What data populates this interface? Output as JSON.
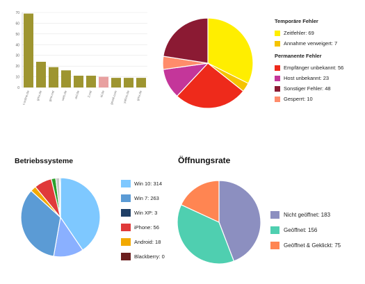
{
  "chart_data": [
    {
      "type": "bar",
      "title": "",
      "categories": [
        "t-online.de",
        "gmx.de",
        "gmx.net",
        "web.de",
        "aol.de",
        "2.net",
        "id.de",
        "gmail.com",
        "yahoo.de",
        "gmx.de"
      ],
      "values": [
        69,
        24,
        19,
        16,
        11,
        11,
        10,
        9,
        9,
        9
      ],
      "highlight_color": "#e8a0a0",
      "highlight_index": 6,
      "bar_color": "#9e9530",
      "ylim": [
        0,
        70
      ],
      "yticks": [
        0,
        10,
        20,
        30,
        40,
        50,
        60,
        70
      ],
      "grid": true
    },
    {
      "type": "pie",
      "title": "",
      "groups": [
        {
          "name": "Temporäre Fehler",
          "items": [
            {
              "label": "Zeitfehler: 69",
              "value": 69,
              "color": "#ffee00"
            },
            {
              "label": "Annahme verweigert: 7",
              "value": 7,
              "color": "#f5c400"
            }
          ]
        },
        {
          "name": "Permanente Fehler",
          "items": [
            {
              "label": "Empfänger unbekannt: 56",
              "value": 56,
              "color": "#ee2a1b"
            },
            {
              "label": "Host unbekannt: 23",
              "value": 23,
              "color": "#c4369a"
            },
            {
              "label": "Sonstiger Fehler: 48",
              "value": 48,
              "color": "#8b1a33"
            },
            {
              "label": "Gesperrt: 10",
              "value": 10,
              "color": "#ff8c6b"
            }
          ]
        }
      ],
      "slice_order": [
        "Zeitfehler: 69",
        "Annahme verweigert: 7",
        "Empfänger unbekannt: 56",
        "Host unbekannt: 23",
        "Gesperrt: 10",
        "Sonstiger Fehler: 48"
      ]
    },
    {
      "type": "pie",
      "title": "Betriebssysteme",
      "items": [
        {
          "label": "Win 10: 314",
          "value": 314,
          "color": "#7ec8ff"
        },
        {
          "label": "Win 7: 263",
          "value": 263,
          "color": "#5b9bd5"
        },
        {
          "label": "Win XP: 3",
          "value": 3,
          "color": "#1f3f66"
        },
        {
          "label": "iPhone: 56",
          "value": 56,
          "color": "#e03a3a"
        },
        {
          "label": "Android: 18",
          "value": 18,
          "color": "#f2a900"
        },
        {
          "label": "Blackberry: 0",
          "value": 0,
          "color": "#6b1f1f"
        }
      ],
      "extra_slices": [
        {
          "value": 95,
          "color": "#8ab0ff"
        },
        {
          "value": 14,
          "color": "#2ca02c"
        },
        {
          "value": 12,
          "color": "#c8c8c8"
        }
      ]
    },
    {
      "type": "pie",
      "title": "Öffnungsrate",
      "items": [
        {
          "label": "Nicht geöffnet: 183",
          "value": 183,
          "color": "#8c8fc0"
        },
        {
          "label": "Geöffnet: 156",
          "value": 156,
          "color": "#4fcfb0"
        },
        {
          "label": "Geöffnet & Geklickt: 75",
          "value": 75,
          "color": "#ff8552"
        }
      ]
    }
  ]
}
